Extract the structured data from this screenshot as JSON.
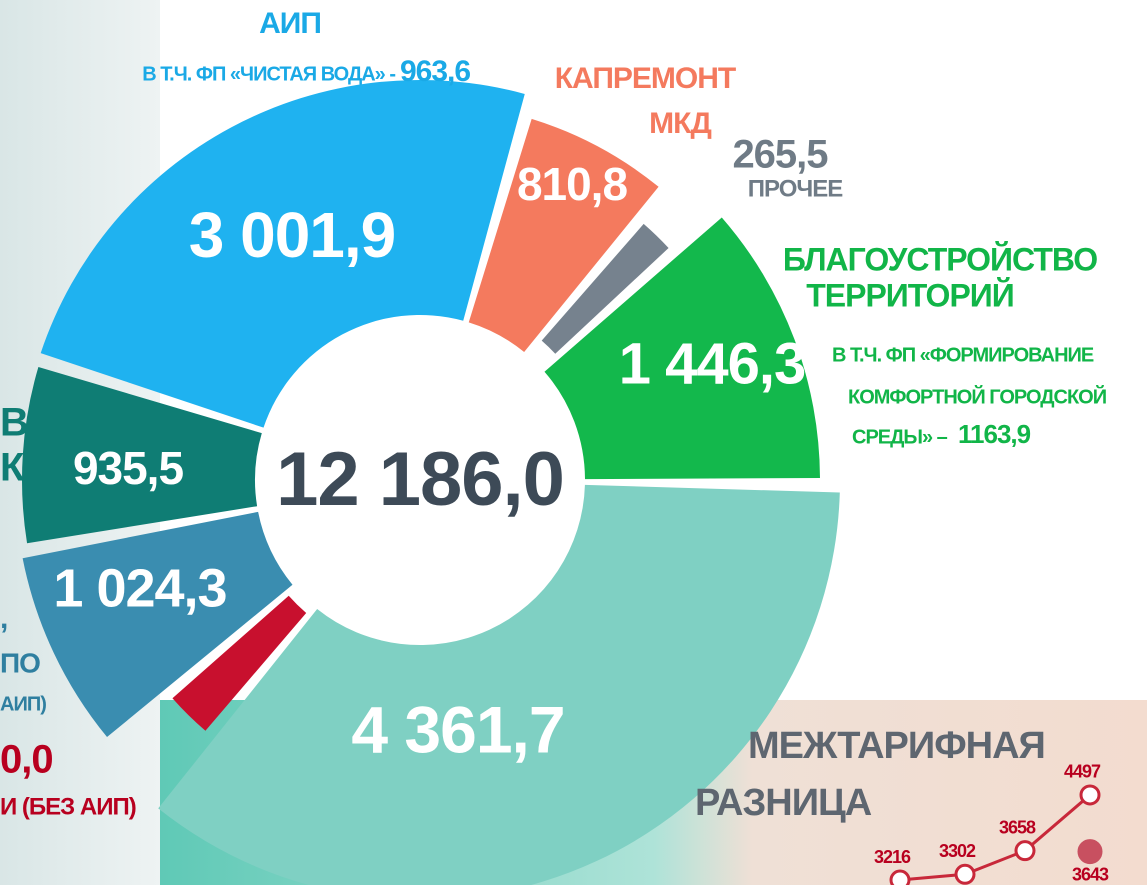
{
  "chart_data": [
    {
      "type": "donut",
      "values": [
        3001.9,
        810.8,
        265.5,
        1446.3,
        4361.7,
        340.0,
        1024.3,
        935.5
      ],
      "value_labels": [
        "3 001,9",
        "810,8",
        "265,5",
        "1 446,3",
        "4 361,7",
        null,
        "1 024,3",
        "935,5"
      ],
      "colors": [
        "#1fb2f0",
        "#f47a5e",
        "#76828e",
        "#13b84c",
        "#7fd0c3",
        "#c8102e",
        "#3a8db0",
        "#0f7d74"
      ],
      "center_label": "12 186,0",
      "annotations": [
        {
          "text": "АИП",
          "color": "#1aa9e6"
        },
        {
          "text": "В Т.Ч. ФП «ЧИСТАЯ ВОДА» -",
          "color": "#1aa9e6"
        },
        {
          "text": "963,6",
          "color": "#1aa9e6"
        },
        {
          "text": "КАПРЕМОНТ",
          "color": "#f47a5e"
        },
        {
          "text": "МКД",
          "color": "#f47a5e"
        },
        {
          "text": "ПРОЧЕЕ",
          "color": "#6f7b86"
        },
        {
          "text": "БЛАГОУСТРОЙСТВО",
          "color": "#11b548"
        },
        {
          "text": "ТЕРРИТОРИЙ",
          "color": "#11b548"
        },
        {
          "text": "В Т.Ч. ФП «ФОРМИРОВАНИЕ",
          "color": "#11b548"
        },
        {
          "text": "КОМФОРТНОЙ ГОРОДСКОЙ",
          "color": "#11b548"
        },
        {
          "text": "СРЕДЫ» –",
          "color": "#11b548"
        },
        {
          "text": "1163,9",
          "color": "#11b548"
        },
        {
          "text": "МЕЖТАРИФНАЯ",
          "color": "#5e6670"
        },
        {
          "text": "РАЗНИЦА",
          "color": "#5e6670"
        },
        {
          "text": "В",
          "color": "#0f7d74"
        },
        {
          "text": "К",
          "color": "#0f7d74"
        },
        {
          "text": ",",
          "color": "#2f7fa0"
        },
        {
          "text": "ПО",
          "color": "#2f7fa0"
        },
        {
          "text": "АИП)",
          "color": "#2f7fa0"
        },
        {
          "text": "0,0",
          "color": "#b8001f"
        },
        {
          "text": "И (БЕЗ АИП)",
          "color": "#b8001f"
        }
      ]
    },
    {
      "type": "line",
      "categories": [
        null,
        null,
        null,
        null
      ],
      "series": [
        {
          "color": "#c8283a",
          "values": [
            3216,
            3302,
            3658,
            4497
          ]
        },
        {
          "color": "#c85060",
          "values": [
            null,
            null,
            null,
            3643
          ]
        }
      ]
    }
  ]
}
